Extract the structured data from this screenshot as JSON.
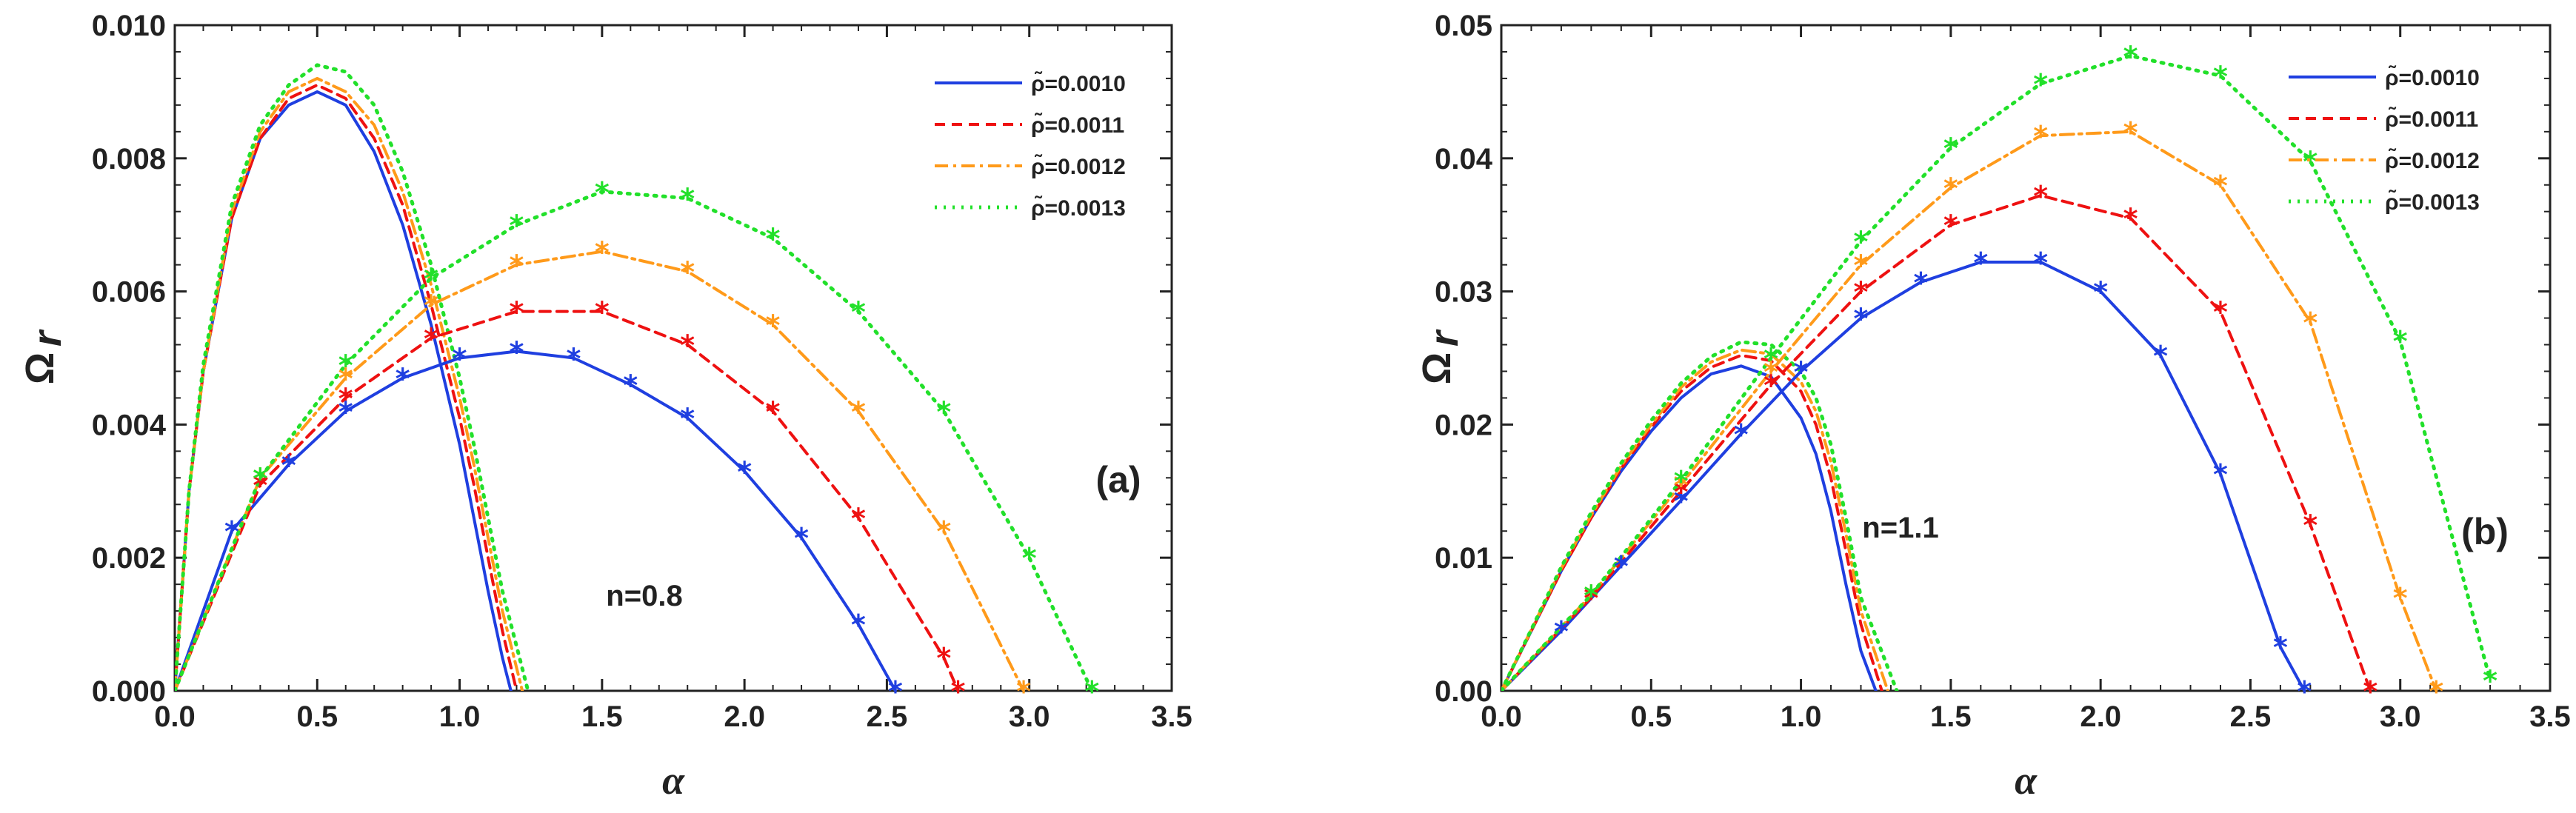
{
  "chart_data": [
    {
      "type": "line",
      "panel": "(a)",
      "annotation": "n=0.8",
      "xlabel": "α",
      "ylabel_main": "Ω",
      "ylabel_sub": "r",
      "xlim": [
        0,
        3.5
      ],
      "ylim": [
        0,
        0.01
      ],
      "xticks": [
        "0.0",
        "0.5",
        "1.0",
        "1.5",
        "2.0",
        "2.5",
        "3.0",
        "3.5"
      ],
      "yticks": [
        "0.000",
        "0.002",
        "0.004",
        "0.006",
        "0.008",
        "0.010"
      ],
      "legend_position": "top-right",
      "series": [
        {
          "name": "ρ̃=0.0010",
          "color": "#1f3fe0",
          "dash": "",
          "width": 4,
          "x": [
            0,
            0.05,
            0.1,
            0.2,
            0.3,
            0.4,
            0.5,
            0.6,
            0.7,
            0.8,
            0.9,
            1.0,
            1.05,
            1.1,
            1.15,
            1.18
          ],
          "y": [
            0,
            0.003,
            0.0048,
            0.0071,
            0.0083,
            0.0088,
            0.009,
            0.0088,
            0.0081,
            0.007,
            0.0055,
            0.0037,
            0.0026,
            0.0015,
            0.0005,
            0
          ]
        },
        {
          "name": "ρ̃=0.0011",
          "color": "#ee1111",
          "dash": "14,9",
          "width": 4,
          "x": [
            0,
            0.05,
            0.1,
            0.2,
            0.3,
            0.4,
            0.5,
            0.6,
            0.7,
            0.8,
            0.9,
            1.0,
            1.05,
            1.1,
            1.15,
            1.2
          ],
          "y": [
            0,
            0.003,
            0.0048,
            0.0071,
            0.0083,
            0.0089,
            0.0091,
            0.0089,
            0.0083,
            0.0073,
            0.0058,
            0.0041,
            0.0031,
            0.002,
            0.0009,
            0
          ]
        },
        {
          "name": "ρ̃=0.0012",
          "color": "#ff9a1a",
          "dash": "18,7,4,7",
          "width": 4,
          "x": [
            0,
            0.05,
            0.1,
            0.2,
            0.3,
            0.4,
            0.5,
            0.6,
            0.7,
            0.8,
            0.9,
            1.0,
            1.05,
            1.1,
            1.15,
            1.22
          ],
          "y": [
            0,
            0.003,
            0.0048,
            0.0072,
            0.0084,
            0.009,
            0.0092,
            0.009,
            0.0085,
            0.0075,
            0.0061,
            0.0044,
            0.0034,
            0.0023,
            0.0012,
            0
          ]
        },
        {
          "name": "ρ̃=0.0013",
          "color": "#22e02a",
          "dash": "3,9",
          "width": 5,
          "x": [
            0,
            0.05,
            0.1,
            0.2,
            0.3,
            0.4,
            0.5,
            0.6,
            0.7,
            0.8,
            0.9,
            1.0,
            1.05,
            1.1,
            1.15,
            1.24
          ],
          "y": [
            0,
            0.003,
            0.0049,
            0.0073,
            0.0085,
            0.0091,
            0.0094,
            0.0093,
            0.0088,
            0.0078,
            0.0064,
            0.0047,
            0.0037,
            0.0026,
            0.0015,
            0
          ]
        }
      ],
      "star_series": [
        {
          "name": "ρ̃=0.0010",
          "color": "#1f3fe0",
          "dash": "",
          "width": 4,
          "x": [
            0,
            0.2,
            0.4,
            0.6,
            0.8,
            1.0,
            1.2,
            1.4,
            1.6,
            1.8,
            2.0,
            2.2,
            2.4,
            2.53
          ],
          "y": [
            0,
            0.0024,
            0.0034,
            0.0042,
            0.0047,
            0.005,
            0.0051,
            0.005,
            0.0046,
            0.0041,
            0.0033,
            0.0023,
            0.001,
            0
          ]
        },
        {
          "name": "ρ̃=0.0011",
          "color": "#ee1111",
          "dash": "14,9",
          "width": 4,
          "x": [
            0,
            0.3,
            0.6,
            0.9,
            1.2,
            1.5,
            1.8,
            2.1,
            2.4,
            2.7,
            2.75
          ],
          "y": [
            0,
            0.0031,
            0.0044,
            0.0053,
            0.0057,
            0.0057,
            0.0052,
            0.0042,
            0.0026,
            0.0005,
            0
          ]
        },
        {
          "name": "ρ̃=0.0012",
          "color": "#ff9a1a",
          "dash": "18,7,4,7",
          "width": 4,
          "x": [
            0,
            0.3,
            0.6,
            0.9,
            1.2,
            1.5,
            1.8,
            2.1,
            2.4,
            2.7,
            2.98
          ],
          "y": [
            0,
            0.0032,
            0.0047,
            0.0058,
            0.0064,
            0.0066,
            0.0063,
            0.0055,
            0.0042,
            0.0024,
            0
          ]
        },
        {
          "name": "ρ̃=0.0013",
          "color": "#22e02a",
          "dash": "3,9",
          "width": 5,
          "x": [
            0,
            0.3,
            0.6,
            0.9,
            1.2,
            1.5,
            1.8,
            2.1,
            2.4,
            2.7,
            3.0,
            3.22
          ],
          "y": [
            0,
            0.0032,
            0.0049,
            0.0062,
            0.007,
            0.0075,
            0.0074,
            0.0068,
            0.0057,
            0.0042,
            0.002,
            0
          ]
        }
      ]
    },
    {
      "type": "line",
      "panel": "(b)",
      "annotation": "n=1.1",
      "xlabel": "α",
      "ylabel_main": "Ω",
      "ylabel_sub": "r",
      "xlim": [
        0,
        3.5
      ],
      "ylim": [
        0,
        0.05
      ],
      "xticks": [
        "0.0",
        "0.5",
        "1.0",
        "1.5",
        "2.0",
        "2.5",
        "3.0",
        "3.5"
      ],
      "yticks": [
        "0.00",
        "0.01",
        "0.02",
        "0.03",
        "0.04",
        "0.05"
      ],
      "legend_position": "top-right",
      "series": [
        {
          "name": "ρ̃=0.0010",
          "color": "#1f3fe0",
          "dash": "",
          "width": 4,
          "x": [
            0,
            0.1,
            0.2,
            0.3,
            0.4,
            0.5,
            0.6,
            0.7,
            0.8,
            0.9,
            1.0,
            1.05,
            1.1,
            1.15,
            1.2,
            1.25
          ],
          "y": [
            0,
            0.0045,
            0.009,
            0.013,
            0.0165,
            0.0195,
            0.022,
            0.0238,
            0.0244,
            0.0236,
            0.0205,
            0.0178,
            0.0135,
            0.008,
            0.003,
            0
          ]
        },
        {
          "name": "ρ̃=0.0011",
          "color": "#ee1111",
          "dash": "14,9",
          "width": 4,
          "x": [
            0,
            0.1,
            0.2,
            0.3,
            0.4,
            0.5,
            0.6,
            0.7,
            0.8,
            0.9,
            1.0,
            1.05,
            1.1,
            1.15,
            1.2,
            1.27
          ],
          "y": [
            0,
            0.0045,
            0.009,
            0.013,
            0.0167,
            0.0198,
            0.0225,
            0.0243,
            0.0252,
            0.0248,
            0.0225,
            0.02,
            0.016,
            0.0105,
            0.005,
            0
          ]
        },
        {
          "name": "ρ̃=0.0012",
          "color": "#ff9a1a",
          "dash": "18,7,4,7",
          "width": 4,
          "x": [
            0,
            0.1,
            0.2,
            0.3,
            0.4,
            0.5,
            0.6,
            0.7,
            0.8,
            0.9,
            1.0,
            1.05,
            1.1,
            1.15,
            1.2,
            1.29
          ],
          "y": [
            0,
            0.0046,
            0.0092,
            0.0132,
            0.0169,
            0.02,
            0.0228,
            0.0247,
            0.0256,
            0.0253,
            0.0232,
            0.021,
            0.0172,
            0.0118,
            0.006,
            0
          ]
        },
        {
          "name": "ρ̃=0.0013",
          "color": "#22e02a",
          "dash": "3,9",
          "width": 5,
          "x": [
            0,
            0.1,
            0.2,
            0.3,
            0.4,
            0.5,
            0.6,
            0.7,
            0.8,
            0.9,
            1.0,
            1.05,
            1.1,
            1.15,
            1.2,
            1.32
          ],
          "y": [
            0,
            0.0046,
            0.0093,
            0.0134,
            0.0171,
            0.0203,
            0.0231,
            0.0251,
            0.0262,
            0.026,
            0.024,
            0.022,
            0.0185,
            0.013,
            0.007,
            0
          ]
        }
      ],
      "star_series": [
        {
          "name": "ρ̃=0.0010",
          "color": "#1f3fe0",
          "dash": "",
          "width": 4,
          "x": [
            0,
            0.2,
            0.4,
            0.6,
            0.8,
            1.0,
            1.2,
            1.4,
            1.6,
            1.8,
            2.0,
            2.2,
            2.4,
            2.6,
            2.68
          ],
          "y": [
            0,
            0.0045,
            0.0094,
            0.0143,
            0.0193,
            0.024,
            0.028,
            0.0307,
            0.0322,
            0.0322,
            0.03,
            0.0252,
            0.0163,
            0.0033,
            0
          ]
        },
        {
          "name": "ρ̃=0.0011",
          "color": "#ee1111",
          "dash": "14,9",
          "width": 4,
          "x": [
            0,
            0.3,
            0.6,
            0.9,
            1.2,
            1.5,
            1.8,
            2.1,
            2.4,
            2.7,
            2.9
          ],
          "y": [
            0,
            0.007,
            0.015,
            0.023,
            0.03,
            0.035,
            0.0372,
            0.0355,
            0.0285,
            0.0125,
            0
          ]
        },
        {
          "name": "ρ̃=0.0012",
          "color": "#ff9a1a",
          "dash": "18,7,4,7",
          "width": 4,
          "x": [
            0,
            0.3,
            0.6,
            0.9,
            1.2,
            1.5,
            1.8,
            2.1,
            2.4,
            2.7,
            3.0,
            3.12
          ],
          "y": [
            0,
            0.0072,
            0.0155,
            0.024,
            0.032,
            0.0378,
            0.0417,
            0.042,
            0.038,
            0.0277,
            0.007,
            0
          ]
        },
        {
          "name": "ρ̃=0.0013",
          "color": "#22e02a",
          "dash": "3,9",
          "width": 5,
          "x": [
            0,
            0.3,
            0.6,
            0.9,
            1.2,
            1.5,
            1.8,
            2.1,
            2.4,
            2.7,
            3.0,
            3.3
          ],
          "y": [
            0,
            0.0072,
            0.0158,
            0.025,
            0.0338,
            0.0408,
            0.0456,
            0.0477,
            0.0462,
            0.0398,
            0.0263,
            0.0008
          ]
        }
      ]
    }
  ]
}
